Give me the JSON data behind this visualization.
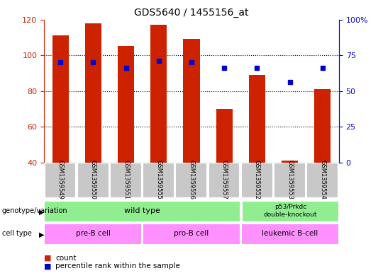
{
  "title": "GDS5640 / 1455156_at",
  "samples": [
    "GSM1359549",
    "GSM1359550",
    "GSM1359551",
    "GSM1359555",
    "GSM1359556",
    "GSM1359557",
    "GSM1359552",
    "GSM1359553",
    "GSM1359554"
  ],
  "counts": [
    111,
    118,
    105,
    117,
    109,
    70,
    89,
    41,
    81
  ],
  "percentile_left_axis": [
    96,
    96,
    93,
    97,
    96,
    93,
    93,
    85,
    93
  ],
  "y_min": 40,
  "y_max": 120,
  "y_ticks": [
    40,
    60,
    80,
    100,
    120
  ],
  "right_axis_labels": [
    "0",
    "25",
    "50",
    "75",
    "100%"
  ],
  "right_axis_positions": [
    40,
    60,
    80,
    100,
    120
  ],
  "bar_color": "#CC2200",
  "dot_color": "#0000CC",
  "grid_color": "#000000",
  "axis_color_left": "#CC2200",
  "axis_color_right": "#0000CC",
  "bg_color": "#FFFFFF",
  "sample_label_bg": "#C8C8C8",
  "genotype_bg": "#90EE90",
  "cell_bg": "#FF90FF",
  "label_row1": "genotype/variation",
  "label_row2": "cell type",
  "legend_count": "count",
  "legend_percentile": "percentile rank within the sample",
  "wt_label": "wild type",
  "ko_label": "p53/Prkdc\ndouble-knockout",
  "cell_labels": [
    "pre-B cell",
    "pro-B cell",
    "leukemic B-cell"
  ]
}
